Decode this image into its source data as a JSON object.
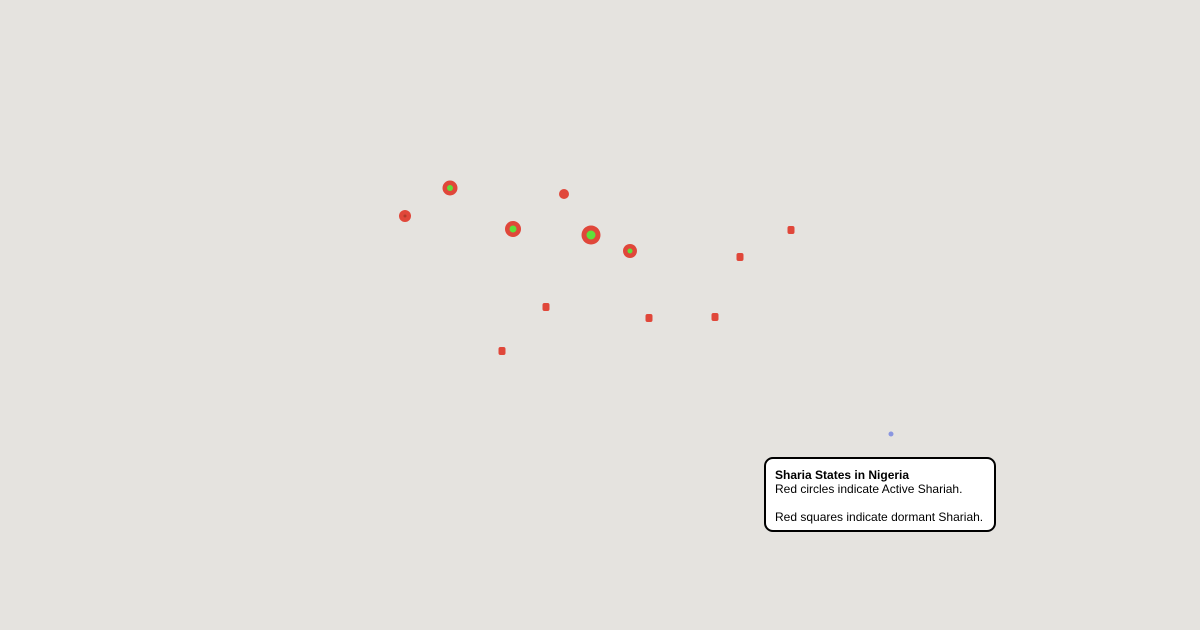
{
  "map": {
    "background_color": "#e5e3df",
    "marker_color": "#e0473a",
    "inner_color": "#5fe03a",
    "user_dot_color": "#8a96e0",
    "active_markers": [
      {
        "kind": "circle",
        "size": "small",
        "inner": "dark"
      },
      {
        "kind": "circle",
        "size": "medium",
        "inner": "green-small"
      },
      {
        "kind": "circle",
        "size": "small",
        "inner": "none"
      },
      {
        "kind": "circle",
        "size": "medium",
        "inner": "green"
      },
      {
        "kind": "circle",
        "size": "large",
        "inner": "green-large"
      },
      {
        "kind": "circle",
        "size": "medium",
        "inner": "green-small"
      }
    ],
    "dormant_markers": 6
  },
  "legend": {
    "title": "Sharia States in Nigeria",
    "line1": "Red circles indicate Active Shariah.",
    "line2": "Red squares indicate dormant Shariah."
  }
}
